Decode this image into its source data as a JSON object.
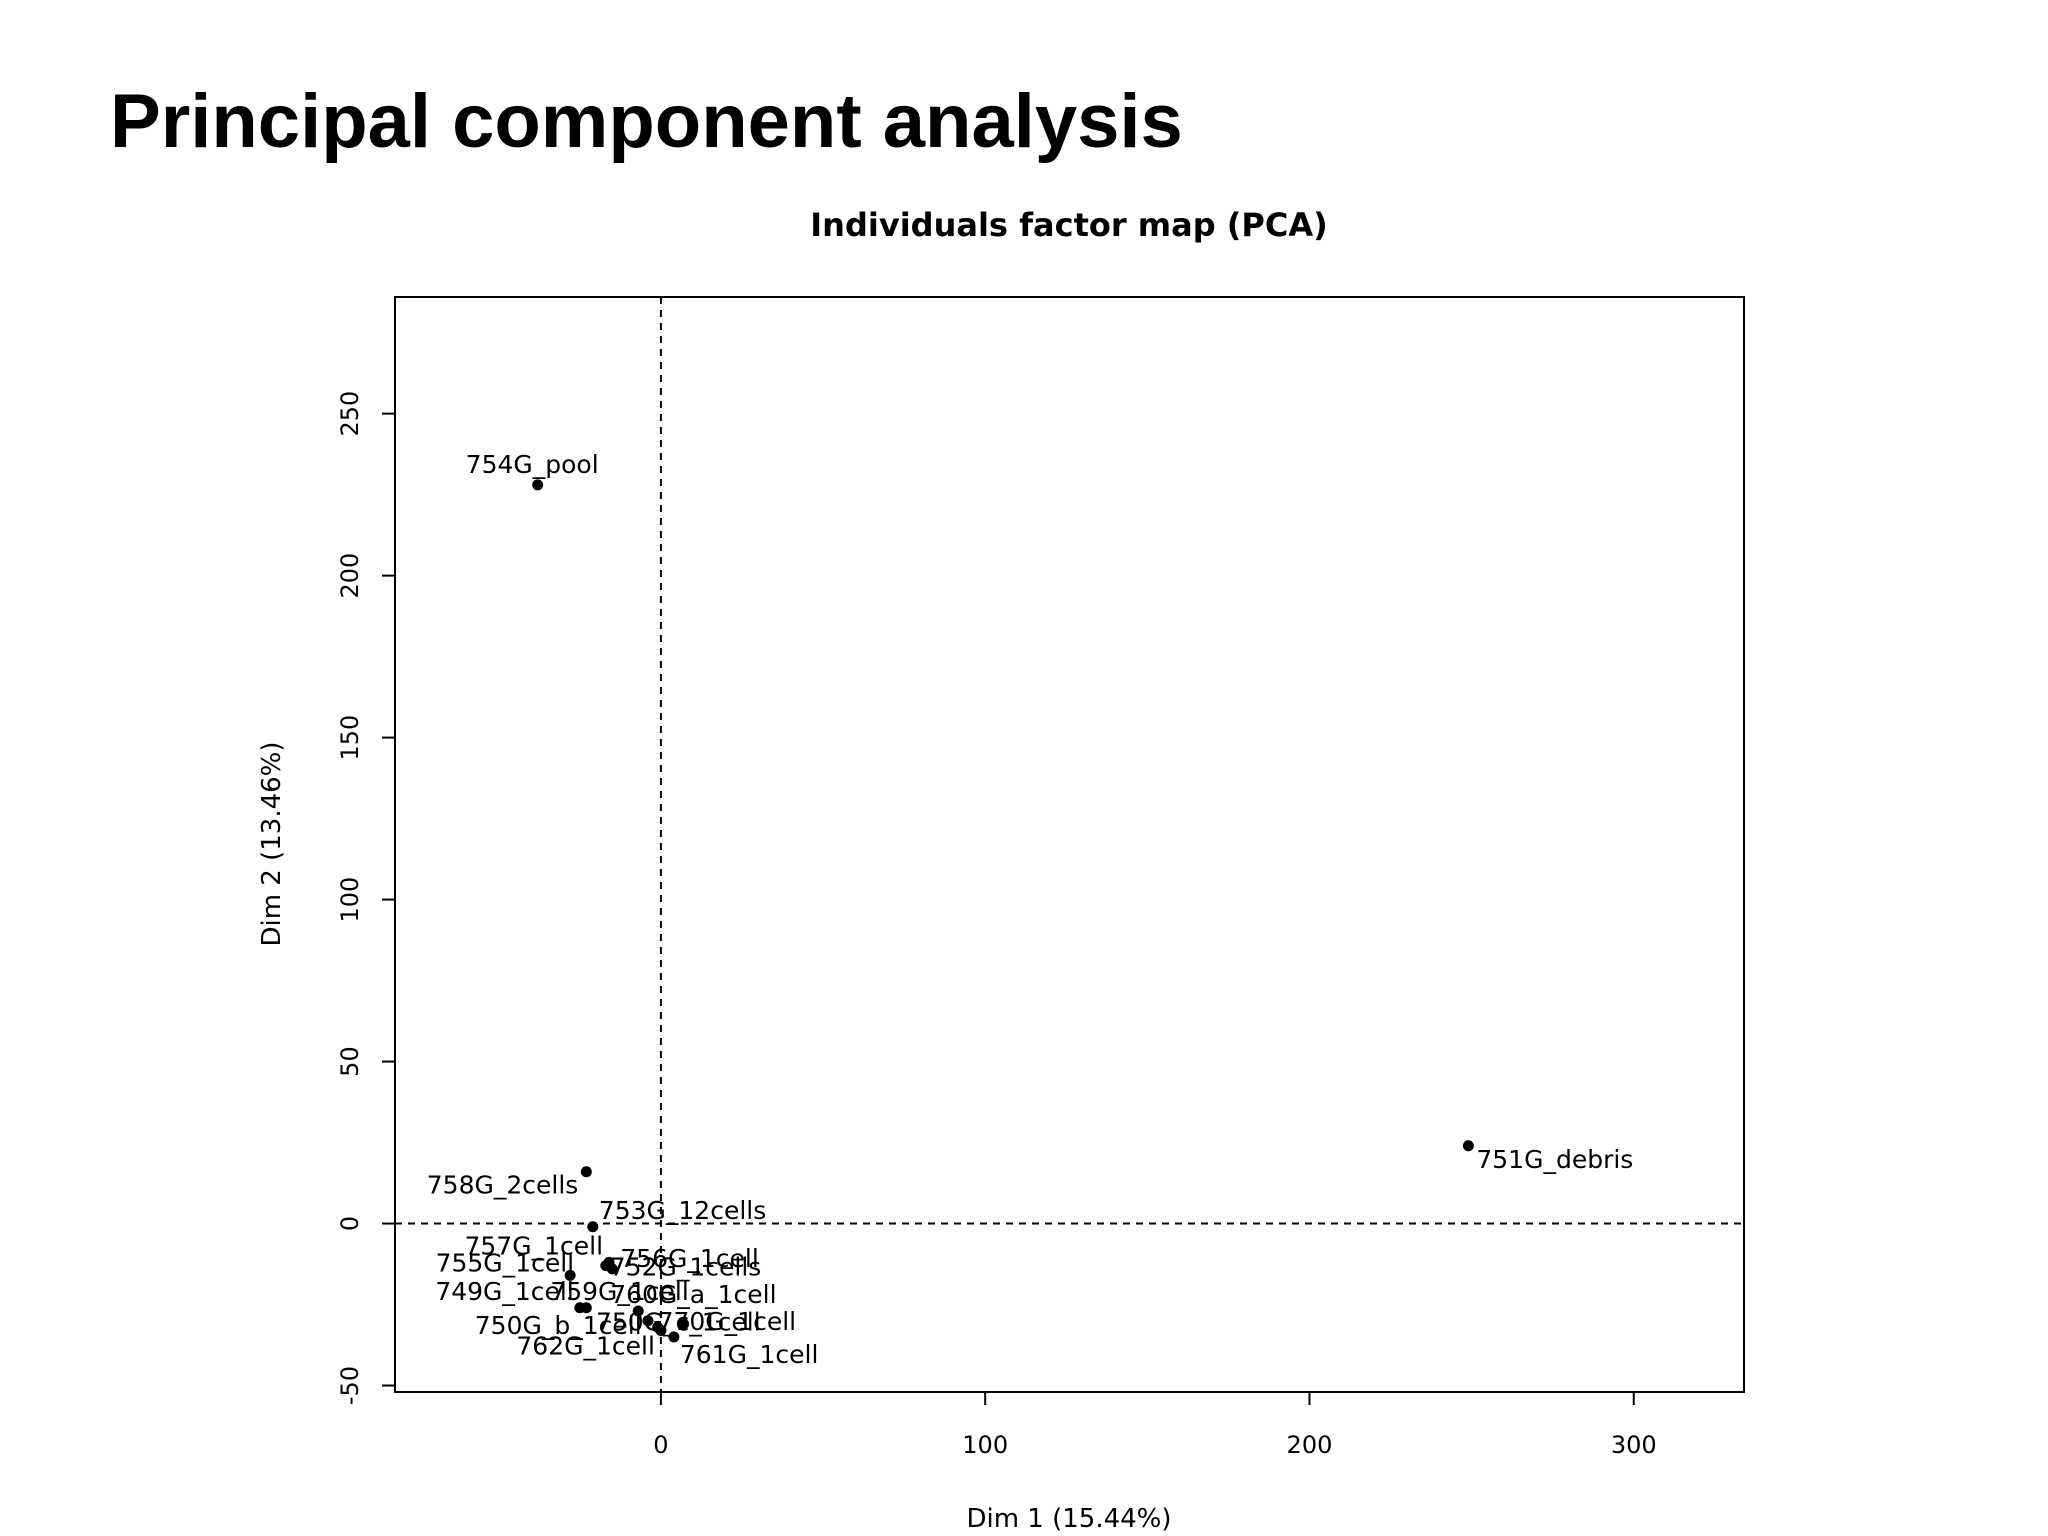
{
  "slide": {
    "title": "Principal component analysis"
  },
  "chart_data": {
    "type": "scatter",
    "title": "Individuals factor map (PCA)",
    "xlabel": "Dim 1 (15.44%)",
    "ylabel": "Dim 2 (13.46%)",
    "xlim": [
      -82,
      334
    ],
    "ylim": [
      -52,
      286
    ],
    "xticks": [
      0,
      100,
      200,
      300
    ],
    "yticks": [
      -50,
      0,
      50,
      100,
      150,
      200,
      250
    ],
    "reference_lines": {
      "x": 0,
      "y": 0,
      "style": "dashed"
    },
    "grid": false,
    "legend": "none",
    "point_color": "#000000",
    "points": [
      {
        "label": "754G_pool",
        "x": -38,
        "y": 228
      },
      {
        "label": "751G_debris",
        "x": 249,
        "y": 24
      },
      {
        "label": "758G_2cells",
        "x": -23,
        "y": 16
      },
      {
        "label": "753G_12cells",
        "x": -21,
        "y": -1
      },
      {
        "label": "757G_1cell",
        "x": -16,
        "y": -12
      },
      {
        "label": "755G_1cell",
        "x": -28,
        "y": -16
      },
      {
        "label": "756G_1cell",
        "x": -15,
        "y": -14
      },
      {
        "label": "752G_1cells",
        "x": -17,
        "y": -13
      },
      {
        "label": "749G_1cell",
        "x": -25,
        "y": -26
      },
      {
        "label": "759G_1cell",
        "x": -23,
        "y": -26
      },
      {
        "label": "760G_a_1cell",
        "x": -7,
        "y": -27
      },
      {
        "label": "750G_c_1cell",
        "x": -4,
        "y": -30
      },
      {
        "label": "750G_b_1cell",
        "x": -1,
        "y": -32
      },
      {
        "label": "762G_1cell",
        "x": 0,
        "y": -33
      },
      {
        "label": "770G_1cell",
        "x": 7,
        "y": -31
      },
      {
        "label": "761G_1cell",
        "x": 4,
        "y": -35
      }
    ]
  }
}
